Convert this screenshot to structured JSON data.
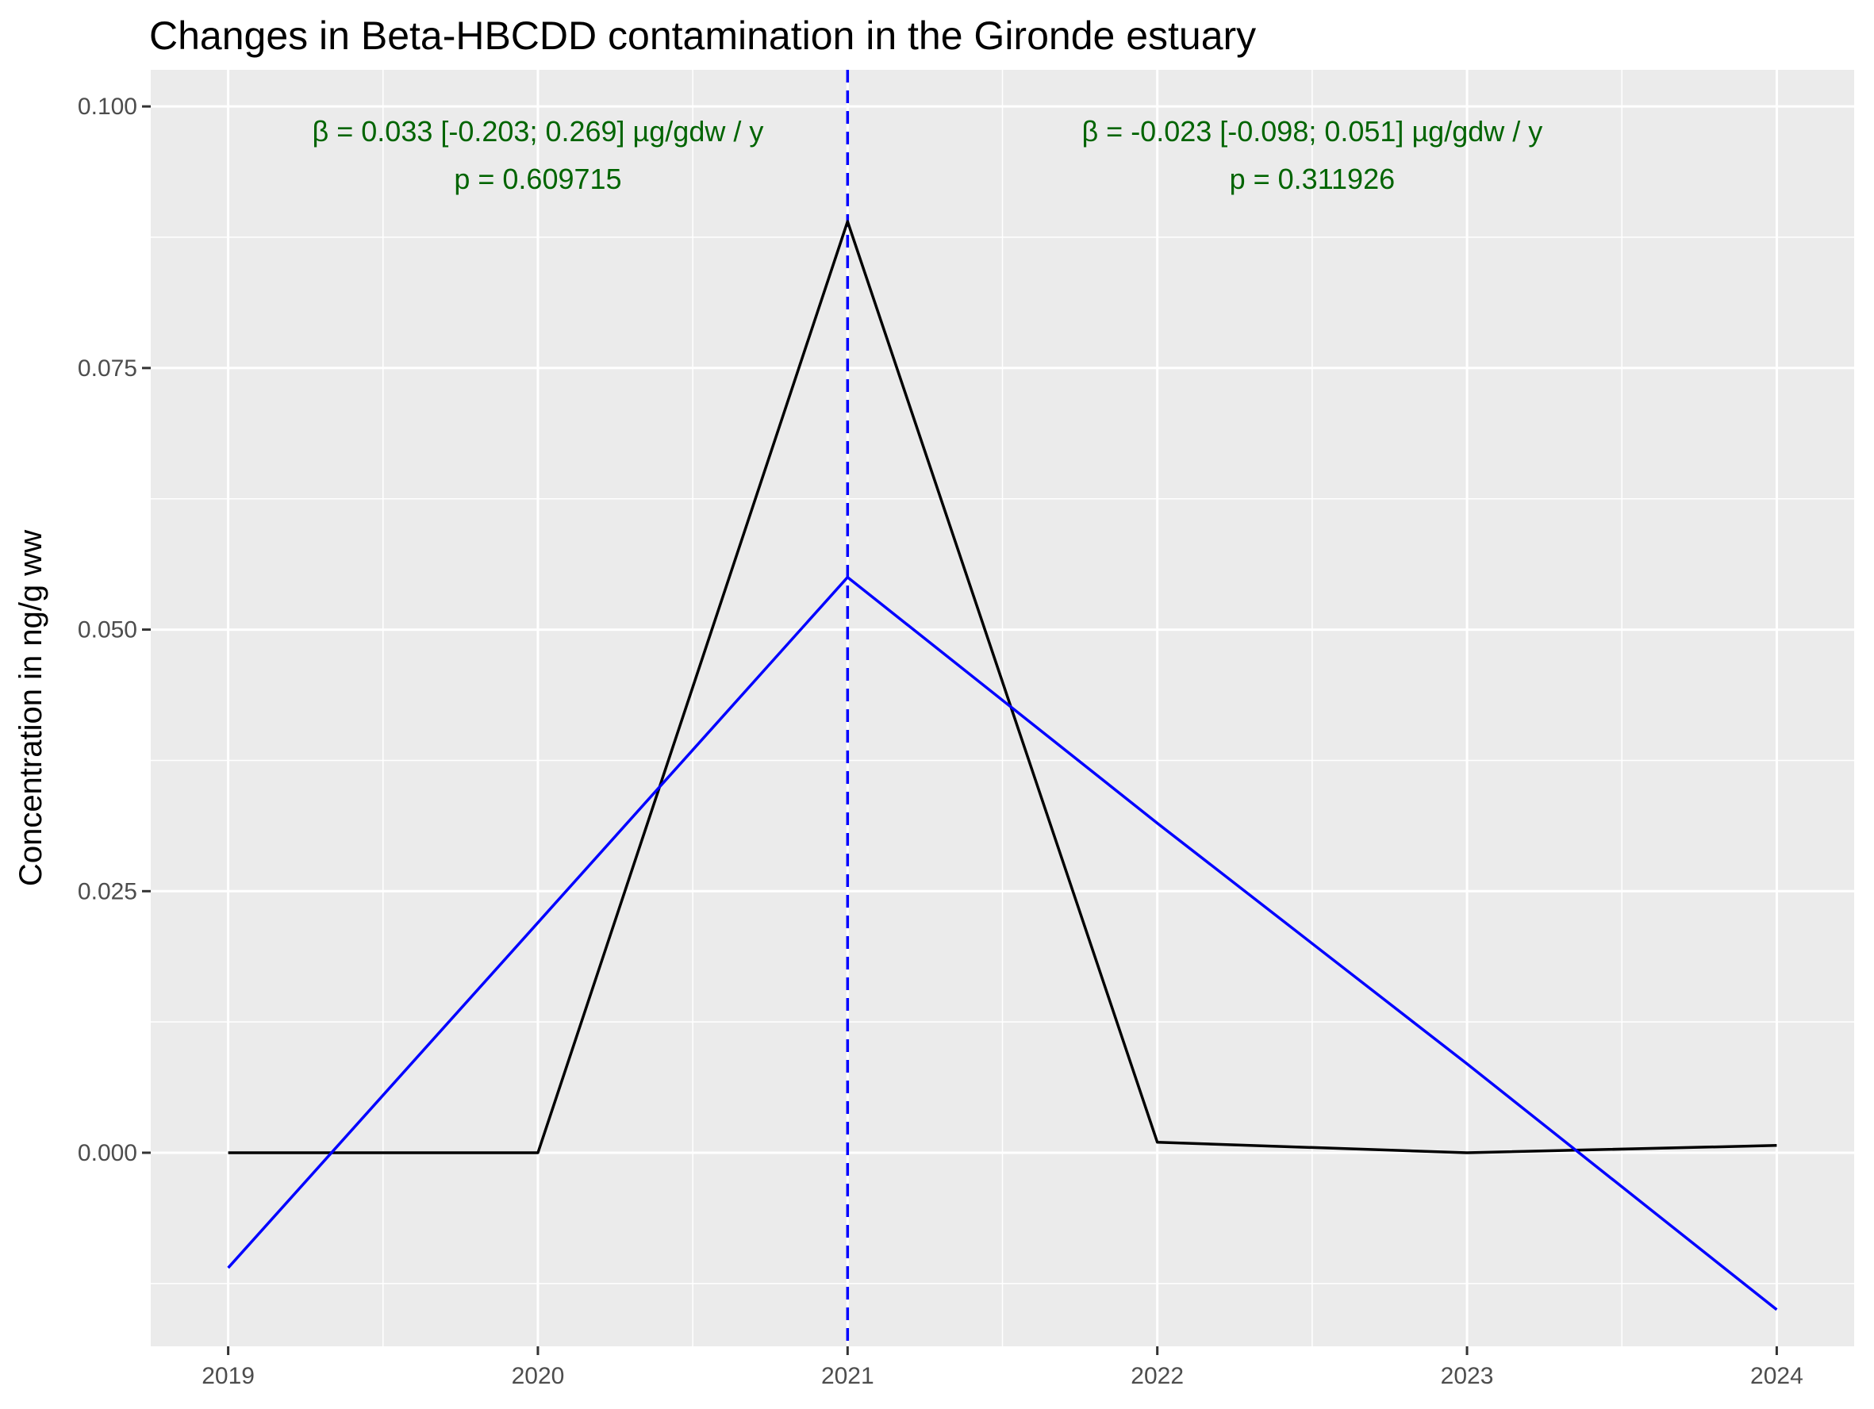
{
  "chart_data": {
    "type": "line",
    "title": "Changes in Beta-HBCDD contamination in the Gironde estuary",
    "xlabel": "",
    "ylabel": "Concentration in ng/g ww",
    "x": [
      2019,
      2020,
      2021,
      2022,
      2023,
      2024
    ],
    "xlim": [
      2018.75,
      2024.25
    ],
    "ylim": [
      -0.0185,
      0.1035
    ],
    "y_ticks": [
      0.0,
      0.025,
      0.05,
      0.075,
      0.1
    ],
    "y_tick_labels": [
      "0.000",
      "0.025",
      "0.050",
      "0.075",
      "0.100"
    ],
    "x_tick_labels": [
      "2019",
      "2020",
      "2021",
      "2022",
      "2023",
      "2024"
    ],
    "grid": true,
    "series": [
      {
        "role": "observed",
        "color": "#000000",
        "values": [
          0.0,
          0.0,
          0.089,
          0.001,
          0.0,
          0.0007
        ]
      },
      {
        "role": "segmented-fit",
        "color": "#0000ff",
        "values": [
          -0.011,
          0.022,
          0.055,
          0.0315,
          0.0085,
          -0.015
        ]
      }
    ],
    "breakpoint": {
      "x": 2021,
      "color": "#0000ff",
      "style": "dashed"
    },
    "annotations": [
      {
        "line1": "β = 0.033 [-0.203; 0.269] µg/gdw / y",
        "line2": "p = 0.609715",
        "x": 2020,
        "color": "#006400"
      },
      {
        "line1": "β = -0.023 [-0.098; 0.051] µg/gdw / y",
        "line2": "p = 0.311926",
        "x": 2022.5,
        "color": "#006400"
      }
    ],
    "panel_background": "#ebebeb",
    "gridline_color": "#ffffff"
  }
}
